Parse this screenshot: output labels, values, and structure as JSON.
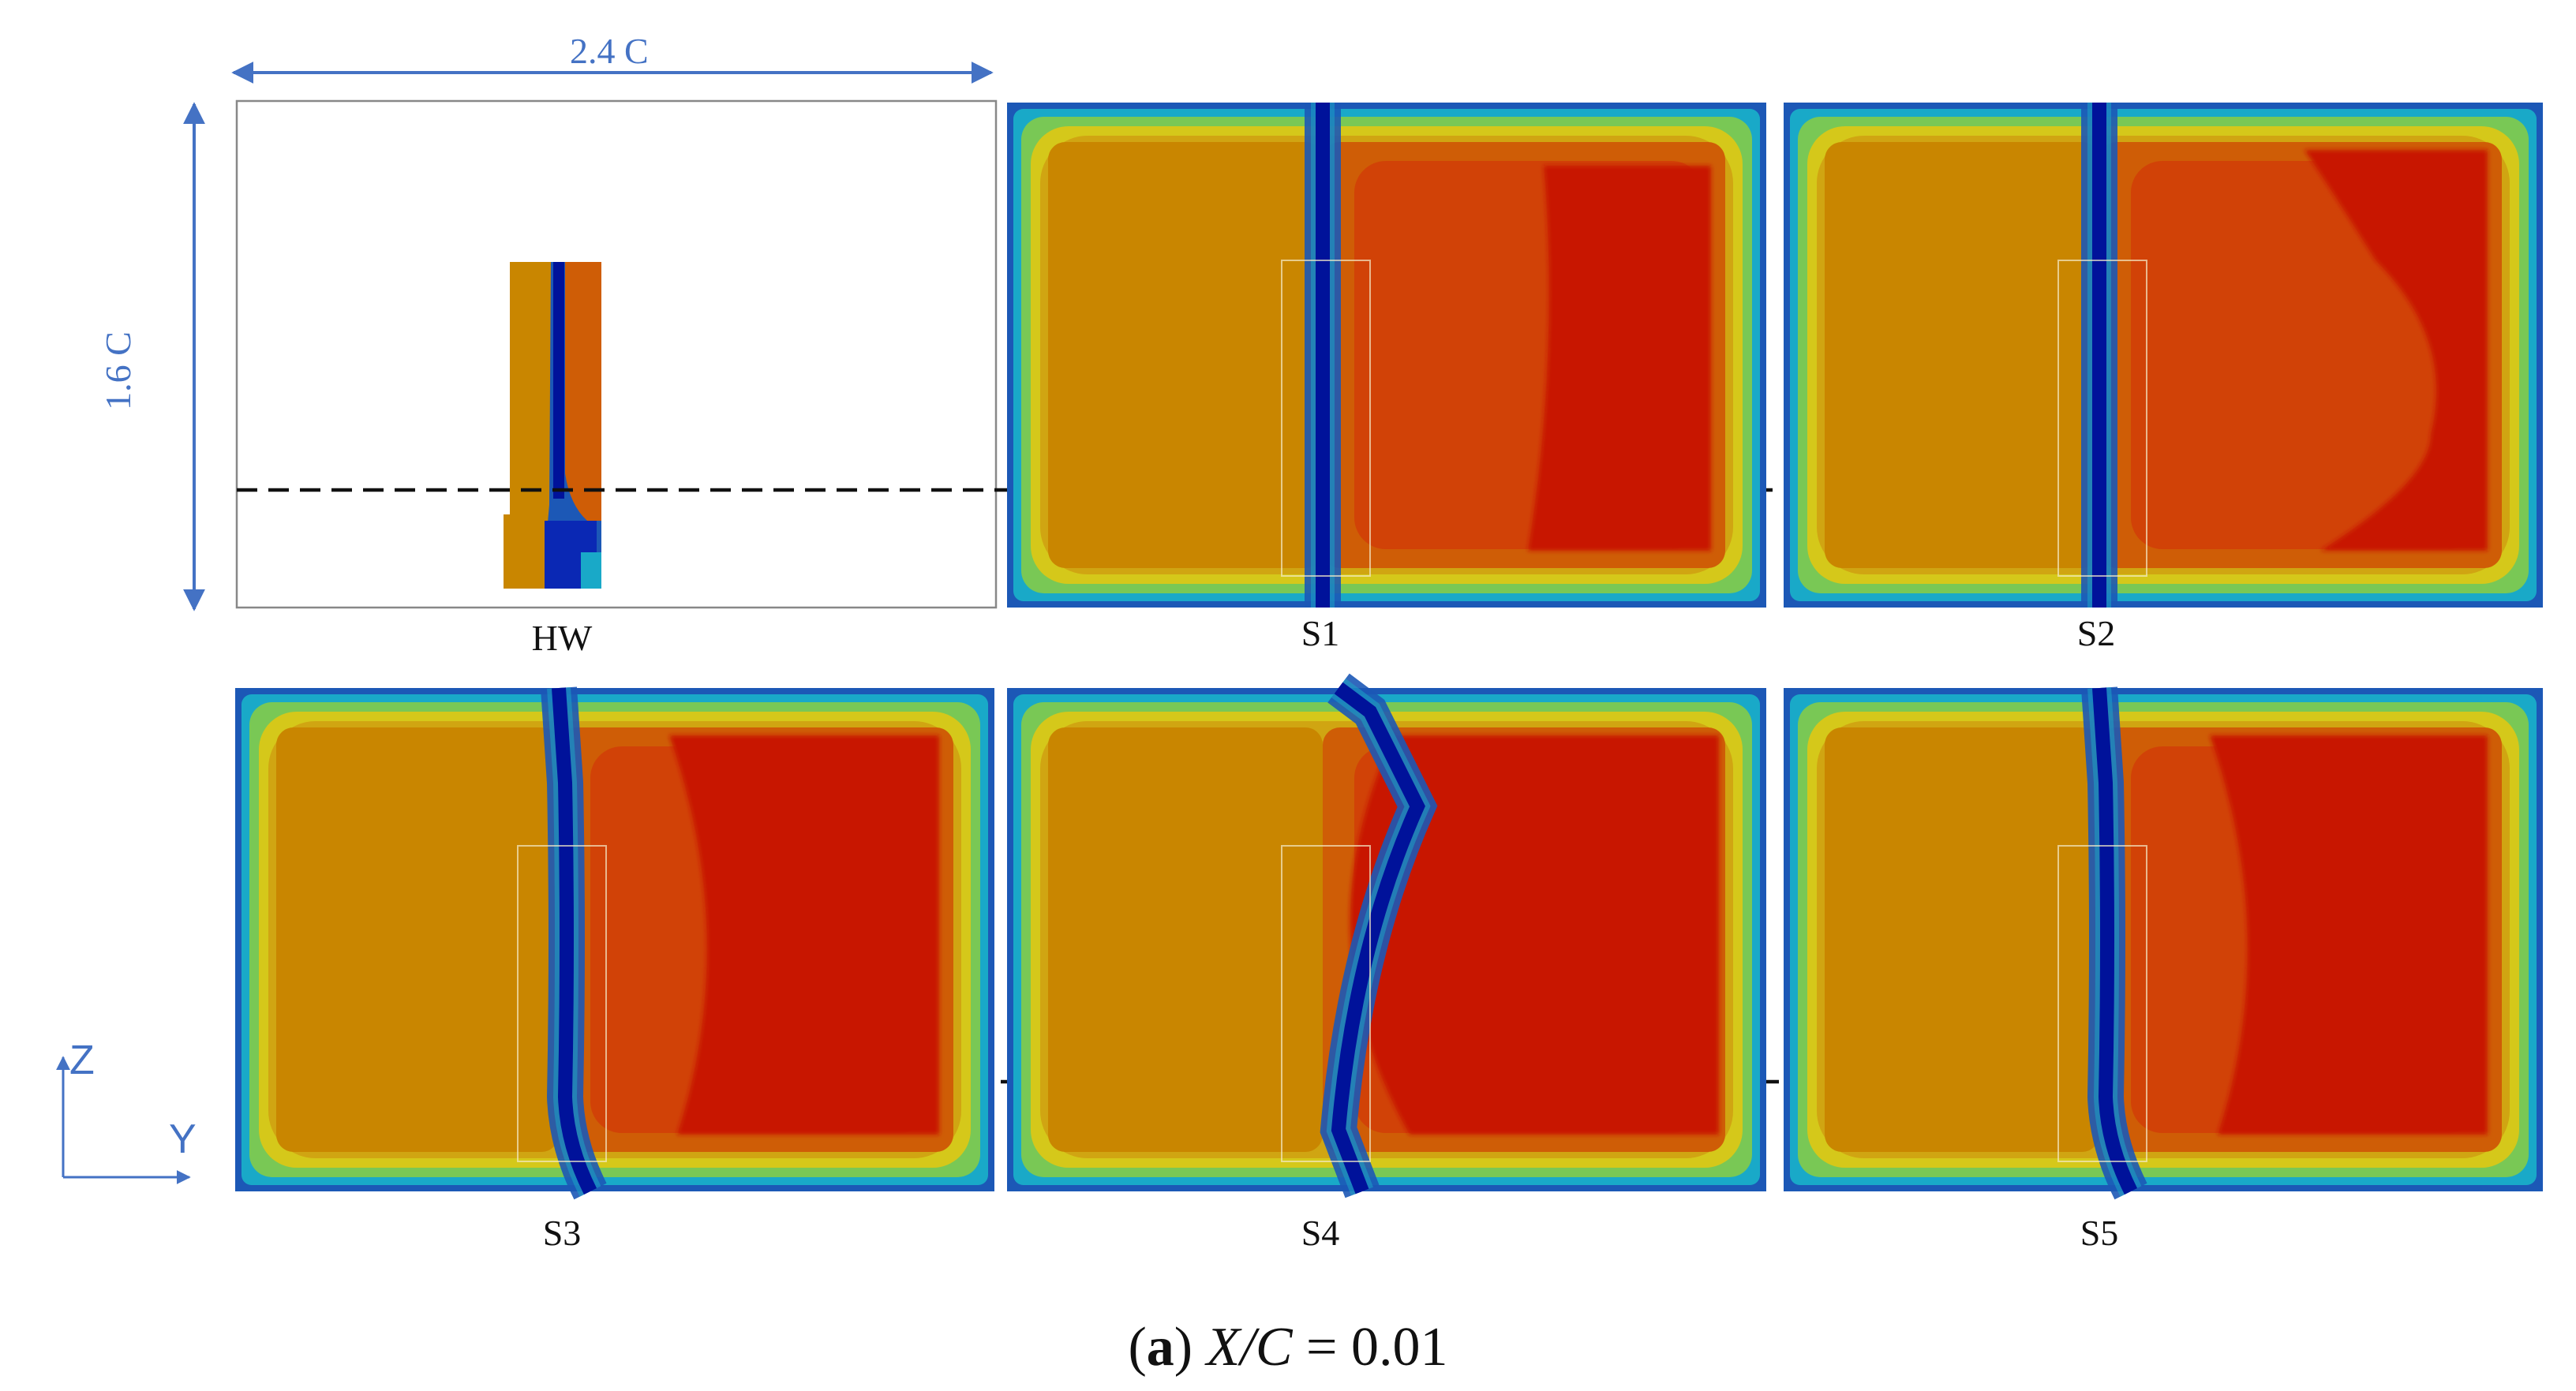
{
  "dimensions": {
    "width_label": "2.4 C",
    "height_label": "1.6 C"
  },
  "panels": [
    {
      "id": "HW",
      "label": "HW"
    },
    {
      "id": "S1",
      "label": "S1"
    },
    {
      "id": "S2",
      "label": "S2"
    },
    {
      "id": "S3",
      "label": "S3"
    },
    {
      "id": "S4",
      "label": "S4"
    },
    {
      "id": "S5",
      "label": "S5"
    }
  ],
  "axes": {
    "vertical": "Z",
    "horizontal": "Y"
  },
  "caption": {
    "letter": "a",
    "variable": "X/C",
    "equals": " = 0.01"
  },
  "colors": {
    "dimension_blue": "#4472c4",
    "contour_core_red": "#c81800",
    "contour_mid_red": "#d23a08",
    "contour_orange": "#c98600",
    "contour_dark_orange": "#cf5d06",
    "contour_edge_yellow": "#d5c81a",
    "contour_edge_green": "#79c855",
    "contour_edge_cyan": "#19a9c8",
    "contour_edge_blue": "#1c58b6",
    "contour_vortex_navy": "#00129a"
  }
}
